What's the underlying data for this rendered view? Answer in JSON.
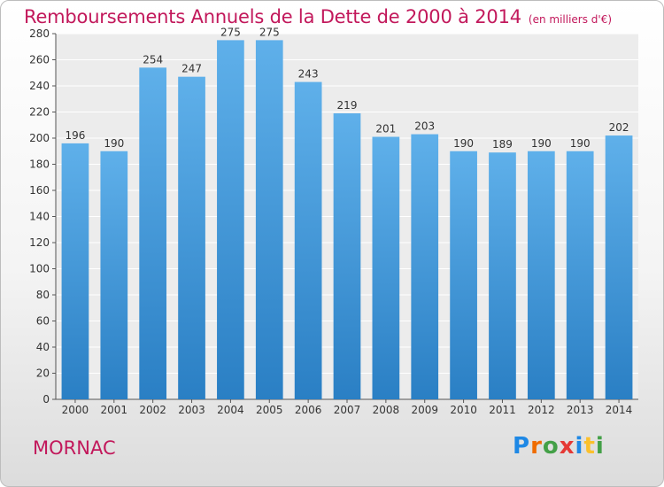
{
  "title": "Remboursements Annuels de la Dette de 2000 à 2014",
  "subtitle": "(en milliers d'€)",
  "town": "MORNAC",
  "logo": {
    "letters": [
      "P",
      "r",
      "o",
      "x",
      "i",
      "t",
      "i"
    ],
    "colors": [
      "#1e88e5",
      "#ef6c00",
      "#43a047",
      "#e53935",
      "#1e88e5",
      "#fbc02d",
      "#43a047"
    ]
  },
  "colors": {
    "bar_top": "#5fb0ea",
    "bar_bottom": "#2a7fc4",
    "title": "#c2185b",
    "text": "#333333"
  },
  "chart_data": {
    "type": "bar",
    "title": "Remboursements Annuels de la Dette de 2000 à 2014",
    "subtitle": "(en milliers d'€)",
    "categories": [
      "2000",
      "2001",
      "2002",
      "2003",
      "2004",
      "2005",
      "2006",
      "2007",
      "2008",
      "2009",
      "2010",
      "2011",
      "2012",
      "2013",
      "2014"
    ],
    "values": [
      196,
      190,
      254,
      247,
      275,
      275,
      243,
      219,
      201,
      203,
      190,
      189,
      190,
      190,
      202
    ],
    "ylim": [
      0,
      280
    ],
    "yticks": [
      0,
      20,
      40,
      60,
      80,
      100,
      120,
      140,
      160,
      180,
      200,
      220,
      240,
      260,
      280
    ],
    "grid": true,
    "xlabel": "",
    "ylabel": ""
  }
}
